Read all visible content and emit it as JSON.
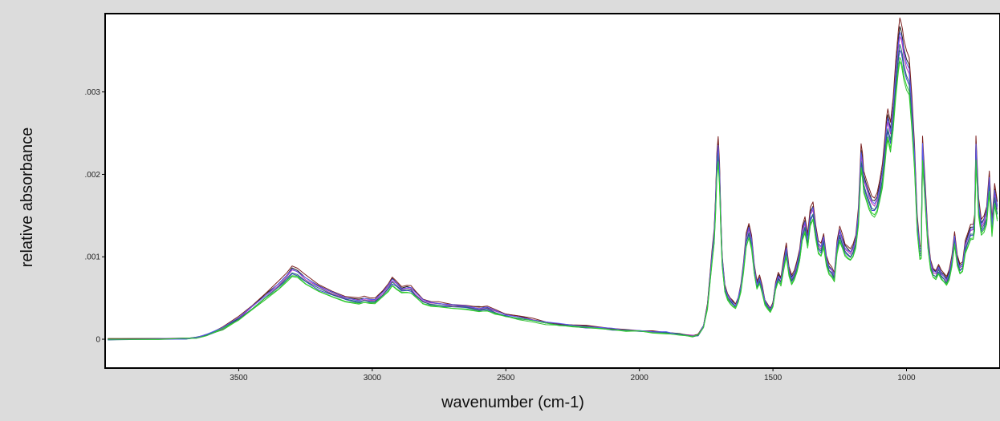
{
  "chart_data": {
    "type": "line",
    "title": "",
    "xlabel": "wavenumber (cm-1)",
    "ylabel": "relative absorbance",
    "xlim": [
      4000,
      650
    ],
    "ylim": [
      -0.00035,
      0.00395
    ],
    "x_reversed": true,
    "grid": false,
    "legend": "none",
    "x_ticks": [
      3500,
      3000,
      2500,
      2000,
      1500,
      1000
    ],
    "x_tick_labels": [
      "3500",
      "3000",
      "2500",
      "2000",
      "1500",
      "1000"
    ],
    "y_ticks": [
      0,
      0.001,
      0.002,
      0.003
    ],
    "y_tick_labels": [
      "0",
      ".001",
      ".002",
      ".003"
    ],
    "series_colors": [
      "#1b1b1b",
      "#3c3ccf",
      "#b82fb8",
      "#2fbf2f",
      "#7a1f1f",
      "#1f6f6f",
      "#5a5af0",
      "#30d030"
    ],
    "series_offsets": [
      3e-05,
      -2e-05,
      1e-05,
      -4e-05,
      5e-05,
      -1e-05,
      2e-05,
      -3e-05
    ],
    "series_scale": [
      1.03,
      0.98,
      1.01,
      0.95,
      1.05,
      0.99,
      1.02,
      0.96
    ],
    "base_spectrum": {
      "x": [
        3990,
        3800,
        3700,
        3660,
        3620,
        3560,
        3500,
        3450,
        3400,
        3350,
        3320,
        3300,
        3280,
        3250,
        3200,
        3150,
        3100,
        3050,
        3030,
        3010,
        2990,
        2960,
        2940,
        2925,
        2910,
        2890,
        2870,
        2855,
        2840,
        2810,
        2780,
        2750,
        2700,
        2650,
        2600,
        2570,
        2540,
        2500,
        2450,
        2400,
        2350,
        2300,
        2250,
        2200,
        2150,
        2100,
        2050,
        2000,
        1950,
        1900,
        1850,
        1800,
        1780,
        1760,
        1745,
        1735,
        1728,
        1720,
        1715,
        1710,
        1705,
        1700,
        1695,
        1690,
        1680,
        1670,
        1660,
        1650,
        1640,
        1630,
        1620,
        1610,
        1600,
        1590,
        1580,
        1570,
        1560,
        1550,
        1540,
        1530,
        1520,
        1510,
        1500,
        1490,
        1480,
        1470,
        1460,
        1450,
        1440,
        1430,
        1420,
        1410,
        1400,
        1390,
        1380,
        1370,
        1360,
        1350,
        1340,
        1330,
        1320,
        1310,
        1300,
        1290,
        1280,
        1270,
        1260,
        1250,
        1240,
        1230,
        1220,
        1210,
        1200,
        1190,
        1180,
        1170,
        1165,
        1160,
        1150,
        1140,
        1130,
        1120,
        1110,
        1100,
        1090,
        1080,
        1075,
        1070,
        1060,
        1050,
        1040,
        1030,
        1025,
        1020,
        1015,
        1010,
        1000,
        990,
        980,
        970,
        960,
        950,
        945,
        940,
        930,
        920,
        910,
        900,
        890,
        880,
        870,
        860,
        850,
        840,
        830,
        820,
        810,
        800,
        790,
        780,
        770,
        760,
        750,
        745,
        740,
        730,
        720,
        710,
        700,
        690,
        680,
        670,
        660
      ],
      "y": [
        0.0,
        0.0,
        1e-05,
        2e-05,
        5e-05,
        0.00013,
        0.00025,
        0.00038,
        0.00052,
        0.00065,
        0.00075,
        0.00082,
        0.0008,
        0.00072,
        0.00062,
        0.00055,
        0.00049,
        0.00046,
        0.00048,
        0.00047,
        0.00047,
        0.00055,
        0.00063,
        0.0007,
        0.00066,
        0.0006,
        0.00061,
        0.0006,
        0.00055,
        0.00046,
        0.00043,
        0.00042,
        0.0004,
        0.00039,
        0.00037,
        0.00037,
        0.00033,
        0.00029,
        0.00026,
        0.00023,
        0.0002,
        0.00018,
        0.00016,
        0.00015,
        0.00014,
        0.00012,
        0.00011,
        0.0001,
        9e-05,
        8e-05,
        6e-05,
        4e-05,
        5e-05,
        0.00015,
        0.0004,
        0.00075,
        0.001,
        0.00125,
        0.0016,
        0.0021,
        0.00228,
        0.002,
        0.0014,
        0.00095,
        0.00062,
        0.00052,
        0.00047,
        0.00043,
        0.0004,
        0.00048,
        0.00062,
        0.00088,
        0.0012,
        0.00131,
        0.00118,
        0.00085,
        0.00065,
        0.00072,
        0.0006,
        0.00045,
        0.0004,
        0.00035,
        0.00042,
        0.00065,
        0.00075,
        0.0007,
        0.0009,
        0.00108,
        0.00082,
        0.00072,
        0.00078,
        0.00088,
        0.00102,
        0.00128,
        0.00138,
        0.00118,
        0.00148,
        0.00155,
        0.0013,
        0.00112,
        0.00108,
        0.0012,
        0.00095,
        0.00085,
        0.00082,
        0.00075,
        0.00112,
        0.00128,
        0.00118,
        0.00108,
        0.00105,
        0.00102,
        0.00108,
        0.00118,
        0.00148,
        0.0022,
        0.0021,
        0.0019,
        0.0018,
        0.0017,
        0.00162,
        0.0016,
        0.00165,
        0.0018,
        0.00198,
        0.0023,
        0.0025,
        0.0026,
        0.00245,
        0.00272,
        0.00315,
        0.0035,
        0.00362,
        0.00358,
        0.0035,
        0.00338,
        0.00325,
        0.00318,
        0.00275,
        0.0022,
        0.0014,
        0.00105,
        0.00105,
        0.0023,
        0.00175,
        0.00118,
        0.0009,
        0.0008,
        0.00078,
        0.00085,
        0.00078,
        0.00075,
        0.0007,
        0.00078,
        0.00095,
        0.00122,
        0.00095,
        0.00085,
        0.00088,
        0.00112,
        0.0012,
        0.0013,
        0.0013,
        0.0014,
        0.0023,
        0.0016,
        0.00135,
        0.0014,
        0.0015,
        0.0019,
        0.00135,
        0.00175,
        0.00155
      ]
    }
  }
}
